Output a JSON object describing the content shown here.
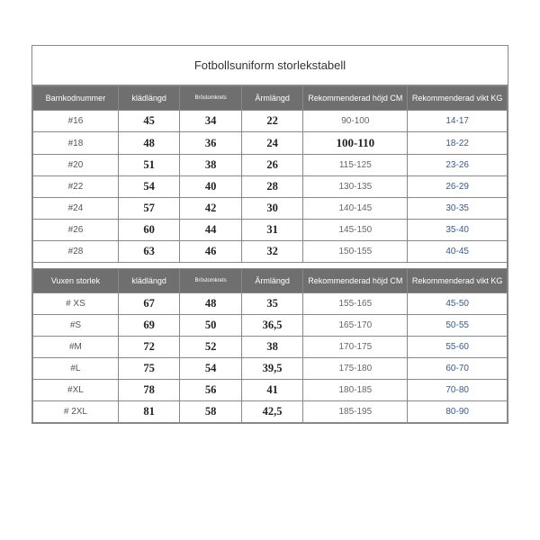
{
  "title": "Fotbollsuniform storlekstabell",
  "kids": {
    "headers": [
      "Barnkodnummer",
      "klädlängd",
      "Bröstomkrets",
      "Ärmlängd",
      "Rekommenderad höjd CM",
      "Rekommenderad vikt KG"
    ],
    "rows": [
      {
        "code": "#16",
        "len": "45",
        "chest": "34",
        "arm": "22",
        "height": "90-100",
        "weight": "14-17"
      },
      {
        "code": "#18",
        "len": "48",
        "chest": "36",
        "arm": "24",
        "height": "100-110",
        "weight": "18-22"
      },
      {
        "code": "#20",
        "len": "51",
        "chest": "38",
        "arm": "26",
        "height": "115-125",
        "weight": "23-26"
      },
      {
        "code": "#22",
        "len": "54",
        "chest": "40",
        "arm": "28",
        "height": "130-135",
        "weight": "26-29"
      },
      {
        "code": "#24",
        "len": "57",
        "chest": "42",
        "arm": "30",
        "height": "140-145",
        "weight": "30-35"
      },
      {
        "code": "#26",
        "len": "60",
        "chest": "44",
        "arm": "31",
        "height": "145-150",
        "weight": "35-40"
      },
      {
        "code": "#28",
        "len": "63",
        "chest": "46",
        "arm": "32",
        "height": "150-155",
        "weight": "40-45"
      }
    ]
  },
  "adult": {
    "headers": [
      "Vuxen storlek",
      "klädlängd",
      "Bröstomkrets",
      "Ärmlängd",
      "Rekommenderad höjd CM",
      "Rekommenderad vikt KG"
    ],
    "rows": [
      {
        "code": "# XS",
        "len": "67",
        "chest": "48",
        "arm": "35",
        "height": "155-165",
        "weight": "45-50"
      },
      {
        "code": "#S",
        "len": "69",
        "chest": "50",
        "arm": "36,5",
        "height": "165-170",
        "weight": "50-55"
      },
      {
        "code": "#M",
        "len": "72",
        "chest": "52",
        "arm": "38",
        "height": "170-175",
        "weight": "55-60"
      },
      {
        "code": "#L",
        "len": "75",
        "chest": "54",
        "arm": "39,5",
        "height": "175-180",
        "weight": "60-70"
      },
      {
        "code": "#XL",
        "len": "78",
        "chest": "56",
        "arm": "41",
        "height": "180-185",
        "weight": "70-80"
      },
      {
        "code": "# 2XL",
        "len": "81",
        "chest": "58",
        "arm": "42,5",
        "height": "185-195",
        "weight": "80-90"
      }
    ]
  }
}
